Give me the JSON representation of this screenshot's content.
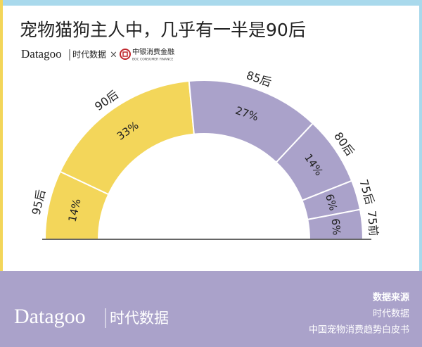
{
  "header": {
    "logo": "Datagoo",
    "logo_cn": "时代数据",
    "times": "×",
    "partner": "中银消费金融",
    "partner_en": "BOC CONSUMER FINANCE"
  },
  "chart_data": {
    "type": "semi-donut",
    "title": "宠物猫狗主人中，几乎有一半是90后",
    "categories": [
      "95后",
      "90后",
      "85后",
      "80后",
      "75后",
      "75前"
    ],
    "values": [
      14,
      33,
      27,
      14,
      6,
      6
    ],
    "value_labels": [
      "14%",
      "33%",
      "27%",
      "14%",
      "6%",
      "6%"
    ],
    "colors": [
      "#f3d65a",
      "#f3d65a",
      "#aaa2ca",
      "#aaa2ca",
      "#aaa2ca",
      "#aaa2ca"
    ]
  },
  "footer": {
    "logo": "Datagoo",
    "logo_cn": "时代数据",
    "source_title": "数据来源",
    "source_1": "时代数据",
    "source_2": "中国宠物消费趋势白皮书"
  }
}
